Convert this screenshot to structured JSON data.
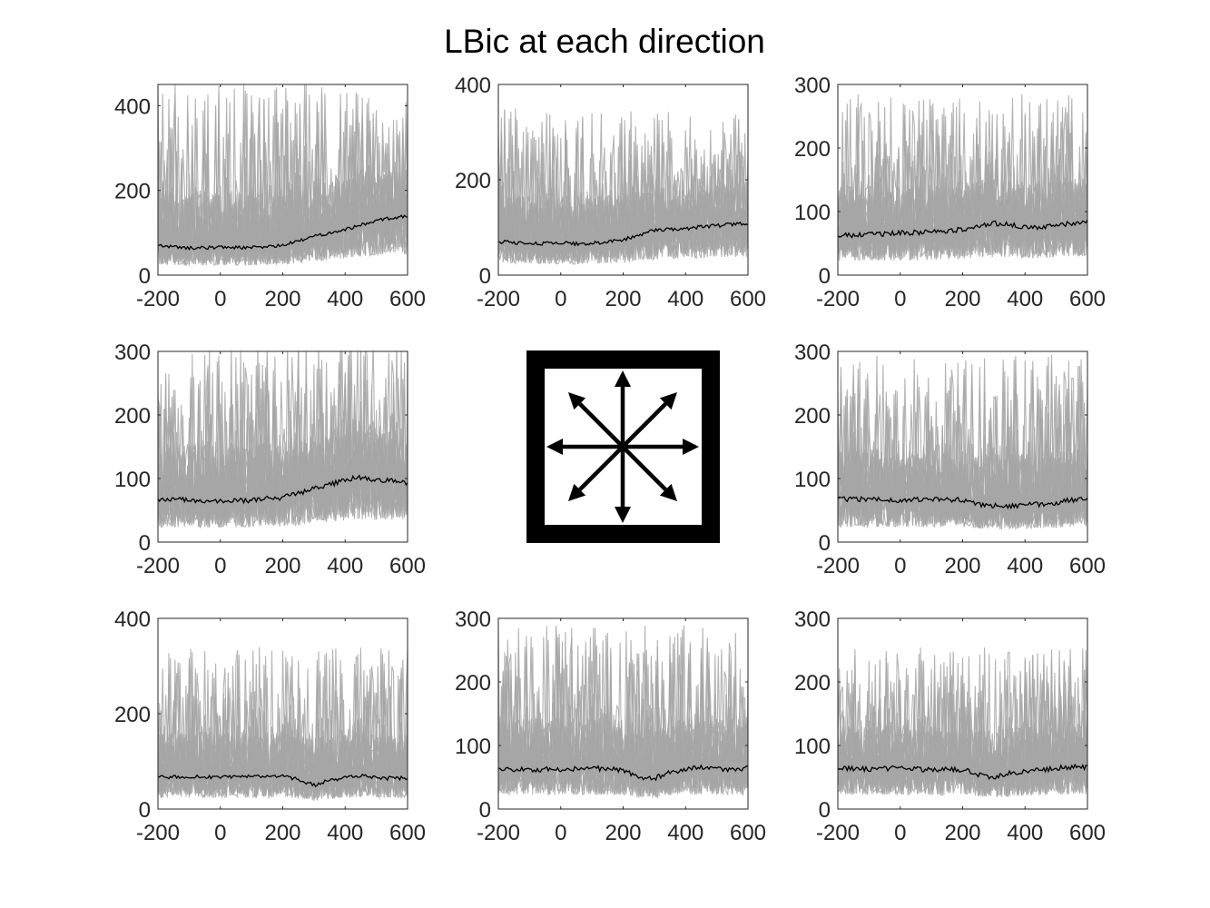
{
  "figure_title": "LBic at each direction",
  "colors": {
    "trial": "#a6a6a6",
    "mean": "#000000",
    "axes": "#262626",
    "icon": "#000000"
  },
  "center_icon": "eight-direction-arrows-icon",
  "chart_data": [
    {
      "type": "line",
      "position": "top-left",
      "xlim": [
        -200,
        600
      ],
      "ylim": [
        0,
        450
      ],
      "xticks": [
        -200,
        0,
        200,
        400,
        600
      ],
      "yticks": [
        0,
        200,
        400
      ],
      "trial_range": [
        15,
        450
      ],
      "series": [
        {
          "x": [
            -200,
            -100,
            0,
            100,
            200,
            250,
            300,
            350,
            400,
            450,
            500,
            550,
            600
          ],
          "y": [
            70,
            64,
            66,
            65,
            70,
            80,
            92,
            100,
            108,
            118,
            128,
            136,
            138
          ]
        }
      ]
    },
    {
      "type": "line",
      "position": "top-center",
      "xlim": [
        -200,
        600
      ],
      "ylim": [
        0,
        400
      ],
      "xticks": [
        -200,
        0,
        200,
        400,
        600
      ],
      "yticks": [
        0,
        200,
        400
      ],
      "trial_range": [
        15,
        350
      ],
      "series": [
        {
          "x": [
            -200,
            -100,
            0,
            100,
            200,
            250,
            300,
            350,
            400,
            450,
            500,
            550,
            600
          ],
          "y": [
            70,
            67,
            66,
            67,
            74,
            83,
            94,
            96,
            98,
            102,
            103,
            107,
            108
          ]
        }
      ]
    },
    {
      "type": "line",
      "position": "top-right",
      "xlim": [
        -200,
        600
      ],
      "ylim": [
        0,
        300
      ],
      "xticks": [
        -200,
        0,
        200,
        400,
        600
      ],
      "yticks": [
        0,
        100,
        200,
        300
      ],
      "trial_range": [
        15,
        285
      ],
      "series": [
        {
          "x": [
            -200,
            -100,
            0,
            100,
            200,
            250,
            300,
            350,
            400,
            450,
            500,
            550,
            600
          ],
          "y": [
            62,
            64,
            66,
            68,
            72,
            78,
            82,
            80,
            76,
            74,
            78,
            82,
            84
          ]
        }
      ]
    },
    {
      "type": "line",
      "position": "middle-left",
      "xlim": [
        -200,
        600
      ],
      "ylim": [
        0,
        300
      ],
      "xticks": [
        -200,
        0,
        200,
        400,
        600
      ],
      "yticks": [
        0,
        100,
        200,
        300
      ],
      "trial_range": [
        15,
        320
      ],
      "series": [
        {
          "x": [
            -200,
            -100,
            0,
            100,
            200,
            250,
            300,
            350,
            400,
            450,
            500,
            550,
            600
          ],
          "y": [
            68,
            66,
            64,
            66,
            70,
            76,
            84,
            90,
            98,
            102,
            98,
            96,
            92
          ]
        }
      ]
    },
    {
      "type": "line",
      "position": "middle-right",
      "xlim": [
        -200,
        600
      ],
      "ylim": [
        0,
        300
      ],
      "xticks": [
        -200,
        0,
        200,
        400,
        600
      ],
      "yticks": [
        0,
        100,
        200,
        300
      ],
      "trial_range": [
        15,
        295
      ],
      "series": [
        {
          "x": [
            -200,
            -100,
            0,
            100,
            200,
            250,
            300,
            350,
            400,
            450,
            500,
            550,
            600
          ],
          "y": [
            68,
            67,
            66,
            67,
            66,
            60,
            57,
            57,
            58,
            60,
            62,
            66,
            70
          ]
        }
      ]
    },
    {
      "type": "line",
      "position": "bottom-left",
      "xlim": [
        -200,
        600
      ],
      "ylim": [
        0,
        400
      ],
      "xticks": [
        -200,
        0,
        200,
        400,
        600
      ],
      "yticks": [
        0,
        200,
        400
      ],
      "trial_range": [
        15,
        340
      ],
      "series": [
        {
          "x": [
            -200,
            -100,
            0,
            100,
            200,
            250,
            300,
            350,
            400,
            450,
            500,
            550,
            600
          ],
          "y": [
            66,
            68,
            66,
            68,
            68,
            62,
            50,
            60,
            66,
            70,
            66,
            64,
            66
          ]
        }
      ]
    },
    {
      "type": "line",
      "position": "bottom-center",
      "xlim": [
        -200,
        600
      ],
      "ylim": [
        0,
        300
      ],
      "xticks": [
        -200,
        0,
        200,
        400,
        600
      ],
      "yticks": [
        0,
        100,
        200,
        300
      ],
      "trial_range": [
        15,
        290
      ],
      "series": [
        {
          "x": [
            -200,
            -100,
            0,
            100,
            200,
            250,
            300,
            350,
            400,
            450,
            500,
            550,
            600
          ],
          "y": [
            64,
            62,
            63,
            64,
            62,
            50,
            48,
            58,
            62,
            66,
            64,
            62,
            64
          ]
        }
      ]
    },
    {
      "type": "line",
      "position": "bottom-right",
      "xlim": [
        -200,
        600
      ],
      "ylim": [
        0,
        300
      ],
      "xticks": [
        -200,
        0,
        200,
        400,
        600
      ],
      "yticks": [
        0,
        100,
        200,
        300
      ],
      "trial_range": [
        15,
        255
      ],
      "series": [
        {
          "x": [
            -200,
            -100,
            0,
            100,
            200,
            250,
            300,
            350,
            400,
            450,
            500,
            550,
            600
          ],
          "y": [
            64,
            63,
            64,
            62,
            62,
            54,
            50,
            56,
            60,
            62,
            64,
            66,
            66
          ]
        }
      ]
    }
  ]
}
